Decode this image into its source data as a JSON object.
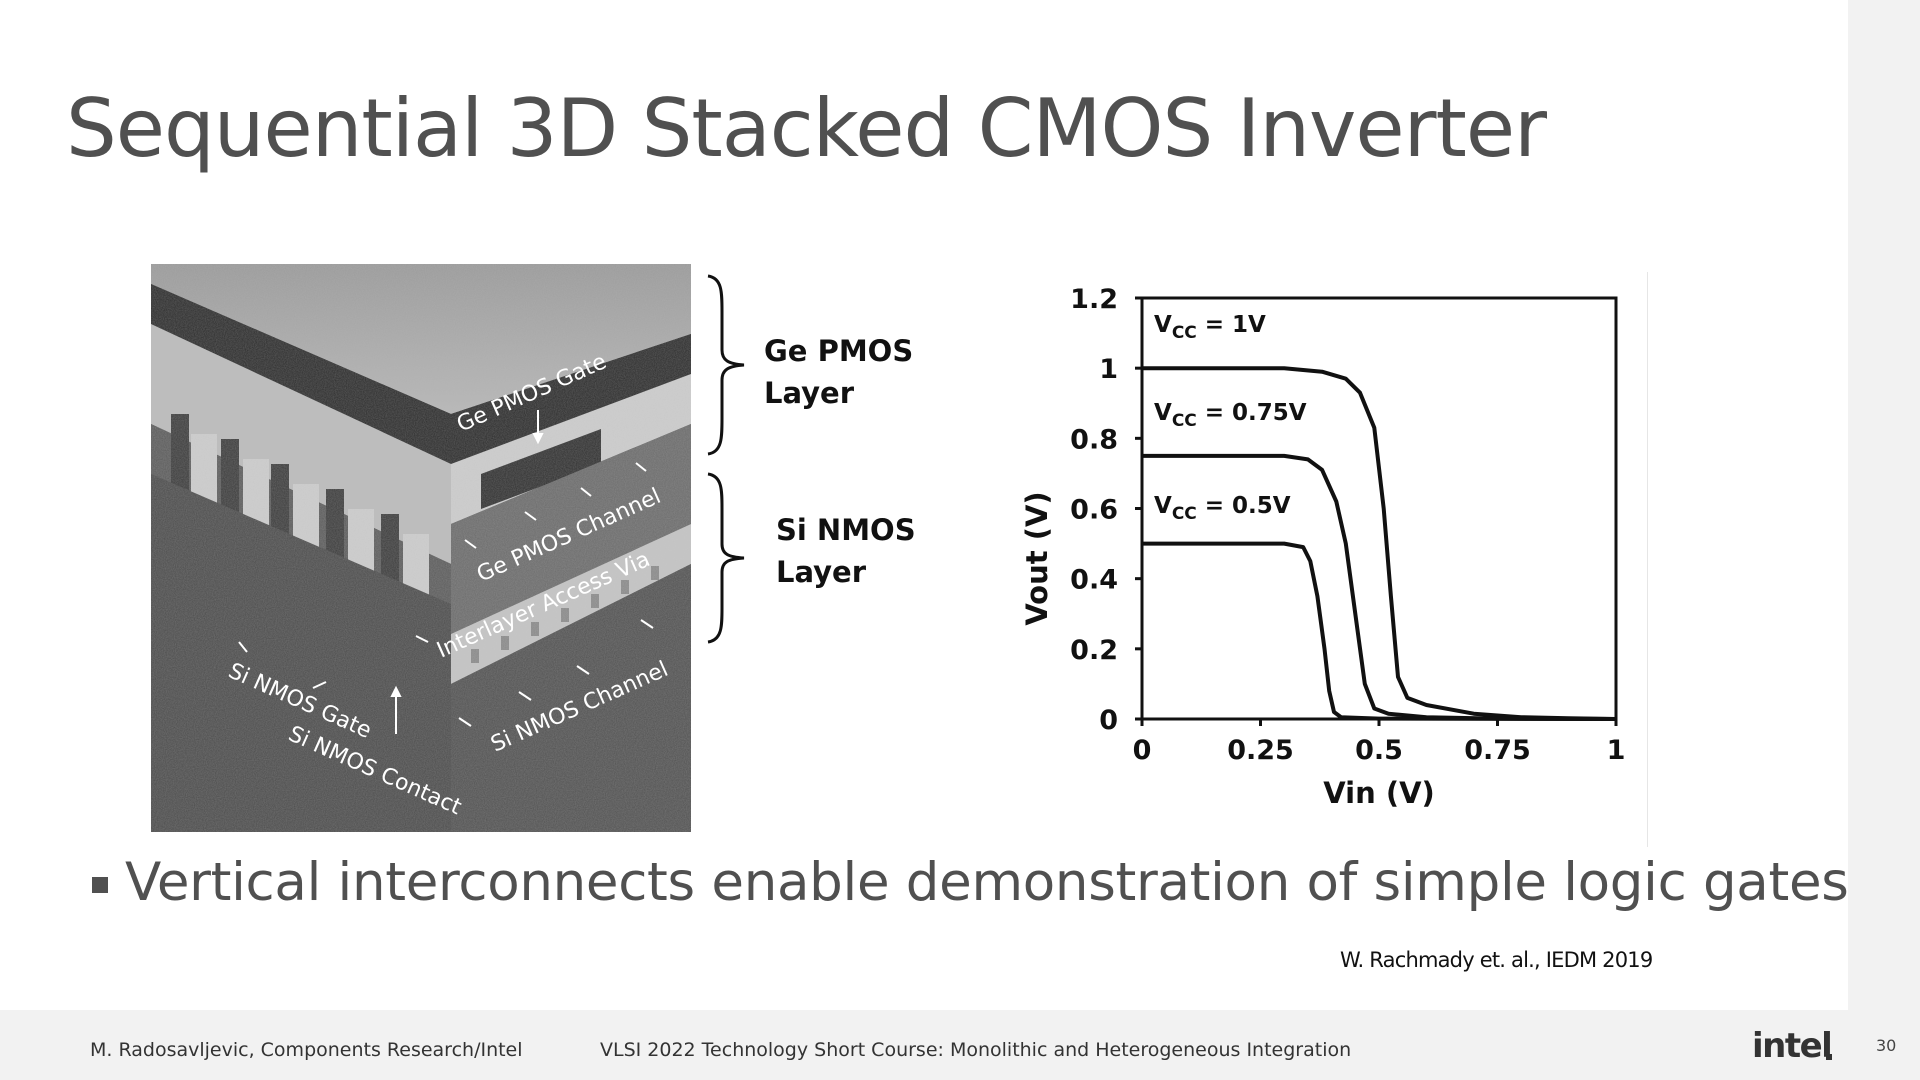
{
  "title": "Sequential 3D Stacked CMOS Inverter",
  "sem_image": {
    "labels": {
      "ge_pmos_gate": "Ge PMOS Gate",
      "ge_pmos_channel": "Ge PMOS Channel",
      "interlayer_access_via": "Interlayer Access Via",
      "si_nmos_channel": "Si NMOS Channel",
      "si_nmos_gate": "Si NMOS Gate",
      "si_nmos_contact": "Si NMOS Contact"
    }
  },
  "layer_labels": {
    "pmos_line1": "Ge PMOS",
    "pmos_line2": "Layer",
    "nmos_line1": "Si NMOS",
    "nmos_line2": "Layer"
  },
  "chart_data": {
    "type": "line",
    "xlabel": "Vin (V)",
    "ylabel": "Vout (V)",
    "xlim": [
      0,
      1
    ],
    "ylim": [
      0,
      1.2
    ],
    "xticks": [
      "0",
      "0.25",
      "0.5",
      "0.75",
      "1"
    ],
    "yticks": [
      "0",
      "0.2",
      "0.4",
      "0.6",
      "0.8",
      "1",
      "1.2"
    ],
    "grid": false,
    "series": [
      {
        "name": "VCC = 1V",
        "label_main": "V",
        "label_sub": "CC",
        "label_rest": " = 1V",
        "points": [
          [
            0,
            1.0
          ],
          [
            0.3,
            1.0
          ],
          [
            0.38,
            0.99
          ],
          [
            0.43,
            0.97
          ],
          [
            0.46,
            0.93
          ],
          [
            0.49,
            0.83
          ],
          [
            0.51,
            0.6
          ],
          [
            0.525,
            0.35
          ],
          [
            0.54,
            0.12
          ],
          [
            0.56,
            0.06
          ],
          [
            0.6,
            0.04
          ],
          [
            0.7,
            0.015
          ],
          [
            0.8,
            0.005
          ],
          [
            0.9,
            0.002
          ],
          [
            1,
            0
          ]
        ]
      },
      {
        "name": "VCC = 0.75V",
        "label_main": "V",
        "label_sub": "CC",
        "label_rest": " = 0.75V",
        "points": [
          [
            0,
            0.75
          ],
          [
            0.3,
            0.75
          ],
          [
            0.35,
            0.74
          ],
          [
            0.38,
            0.71
          ],
          [
            0.41,
            0.62
          ],
          [
            0.43,
            0.5
          ],
          [
            0.45,
            0.3
          ],
          [
            0.47,
            0.1
          ],
          [
            0.49,
            0.03
          ],
          [
            0.52,
            0.015
          ],
          [
            0.6,
            0.005
          ],
          [
            0.75,
            0.001
          ],
          [
            1,
            0
          ]
        ]
      },
      {
        "name": "VCC = 0.5V",
        "label_main": "V",
        "label_sub": "CC",
        "label_rest": " = 0.5V",
        "points": [
          [
            0,
            0.5
          ],
          [
            0.3,
            0.5
          ],
          [
            0.34,
            0.49
          ],
          [
            0.355,
            0.45
          ],
          [
            0.37,
            0.35
          ],
          [
            0.385,
            0.2
          ],
          [
            0.395,
            0.08
          ],
          [
            0.405,
            0.02
          ],
          [
            0.42,
            0.005
          ],
          [
            0.5,
            0.001
          ],
          [
            1,
            0
          ]
        ]
      }
    ]
  },
  "bullet": "Vertical interconnects enable demonstration of simple logic gates",
  "citation": "W. Rachmady et. al., IEDM 2019",
  "footer": {
    "author": "M. Radosavljevic, Components Research/Intel",
    "course": "VLSI 2022 Technology Short Course: Monolithic and Heterogeneous Integration",
    "logo": "intel",
    "page_number": "30"
  }
}
